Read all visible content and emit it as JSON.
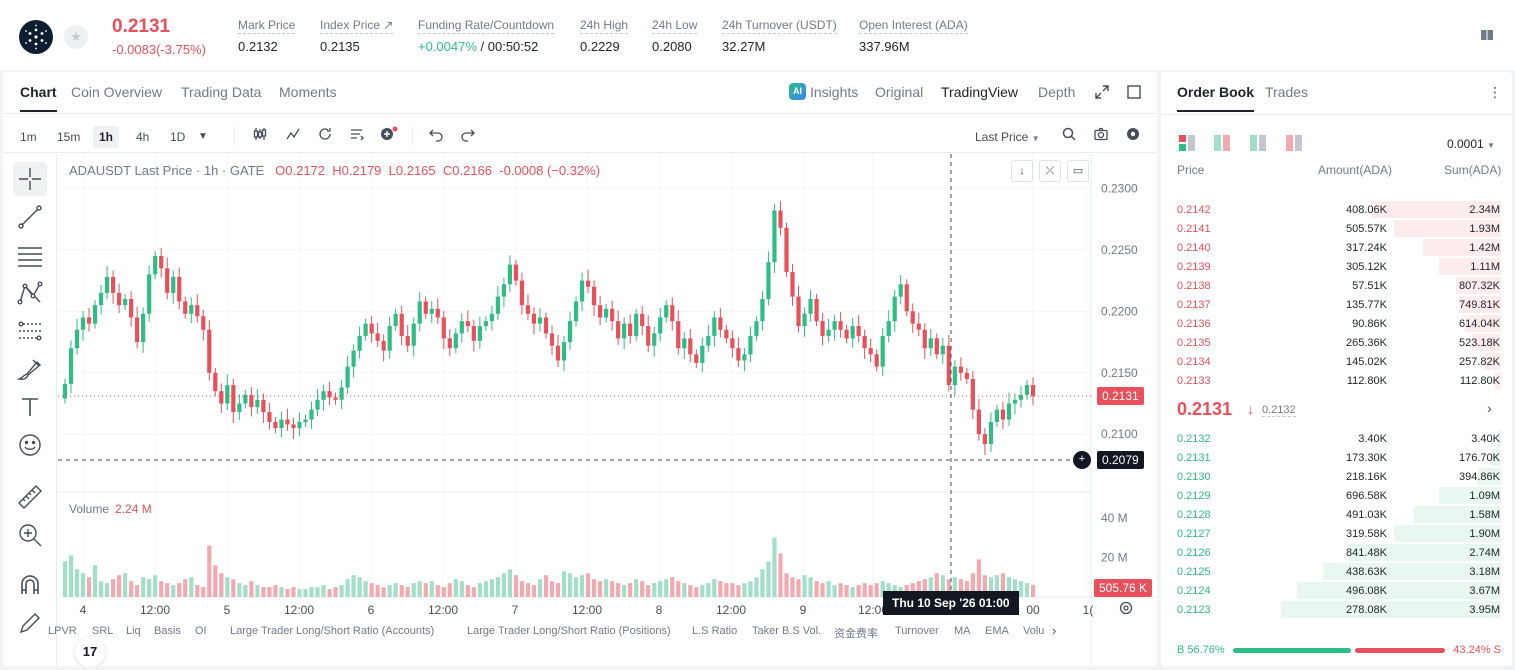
{
  "header": {
    "last_price": "0.2131",
    "change": "-0.0083(-3.75%)",
    "stats": [
      {
        "label": "Mark Price",
        "value": "0.2132"
      },
      {
        "label": "Index Price ↗",
        "value": "0.2135"
      },
      {
        "label": "Funding Rate/Countdown",
        "value_green": "+0.0047%",
        "value": " / 00:50:52"
      },
      {
        "label": "24h High",
        "value": "0.2229"
      },
      {
        "label": "24h Low",
        "value": "0.2080"
      },
      {
        "label": "24h Turnover (USDT)",
        "value": "32.27M"
      },
      {
        "label": "Open Interest (ADA)",
        "value": "337.96M"
      }
    ]
  },
  "chart_tabs": [
    "Chart",
    "Coin Overview",
    "Trading Data",
    "Moments"
  ],
  "view_options": {
    "insights": "Insights",
    "ai_badge": "AI",
    "original": "Original",
    "tradingview": "TradingView",
    "depth": "Depth"
  },
  "intervals": [
    "1m",
    "15m",
    "1h",
    "4h",
    "1D"
  ],
  "price_source": "Last Price",
  "legend": {
    "symbol": "ADAUSDT Last Price · 1h · GATE",
    "o": "O0.2172",
    "h": "H0.2179",
    "l": "L0.2165",
    "c": "C0.2166",
    "chg": "-0.0008 (−0.32%)"
  },
  "volume_legend": {
    "label": "Volume",
    "value": "2.24 M"
  },
  "tv_logo": "17",
  "price_axis": {
    "ticks": [
      "0.2300",
      "0.2250",
      "0.2200",
      "0.2150",
      "0.2100"
    ],
    "tick_values": [
      0.23,
      0.225,
      0.22,
      0.215,
      0.21
    ],
    "current": "0.2131",
    "current_value": 0.2131,
    "crosshair": "0.2079",
    "crosshair_value": 0.2079,
    "range": [
      0.2053,
      0.2328
    ]
  },
  "volume_axis": {
    "ticks": [
      "40 M",
      "20 M"
    ],
    "tick_values": [
      40,
      20
    ],
    "current": "505.76 K",
    "max": 53
  },
  "time_axis": {
    "labels": [
      "4",
      "12:00",
      "5",
      "12:00",
      "6",
      "12:00",
      "7",
      "12:00",
      "8",
      "12:00",
      "9",
      "12:00",
      "00",
      "1("
    ],
    "crosshair_label": "Thu 10 Sep '26   01:00"
  },
  "indicators": [
    "LPVR",
    "SRL",
    "Liq",
    "Basis",
    "OI",
    "Large Trader Long/Short Ratio (Accounts)",
    "Large Trader Long/Short Ratio (Positions)",
    "L.S Ratio",
    "Taker B.S Vol.",
    "资金费率",
    "Turnover",
    "MA",
    "EMA",
    "Volu"
  ],
  "colors": {
    "up": "#2ebd85",
    "down": "#e8505b",
    "up_vol": "#a3dec8",
    "down_vol": "#f3a9b0"
  },
  "order_book": {
    "tabs": [
      "Order Book",
      "Trades"
    ],
    "precision": "0.0001",
    "headers": {
      "price": "Price",
      "amount": "Amount(ADA)",
      "sum": "Sum(ADA)"
    },
    "asks": [
      {
        "price": "0.2142",
        "amount": "408.06K",
        "sum": "2.34M",
        "depth": 0.4
      },
      {
        "price": "0.2141",
        "amount": "505.57K",
        "sum": "1.93M",
        "depth": 0.33
      },
      {
        "price": "0.2140",
        "amount": "317.24K",
        "sum": "1.42M",
        "depth": 0.24
      },
      {
        "price": "0.2139",
        "amount": "305.12K",
        "sum": "1.11M",
        "depth": 0.19
      },
      {
        "price": "0.2138",
        "amount": "57.51K",
        "sum": "807.32K",
        "depth": 0.14
      },
      {
        "price": "0.2137",
        "amount": "135.77K",
        "sum": "749.81K",
        "depth": 0.13
      },
      {
        "price": "0.2136",
        "amount": "90.86K",
        "sum": "614.04K",
        "depth": 0.11
      },
      {
        "price": "0.2135",
        "amount": "265.36K",
        "sum": "523.18K",
        "depth": 0.09
      },
      {
        "price": "0.2134",
        "amount": "145.02K",
        "sum": "257.82K",
        "depth": 0.05
      },
      {
        "price": "0.2133",
        "amount": "112.80K",
        "sum": "112.80K",
        "depth": 0.02
      }
    ],
    "mid": {
      "price": "0.2131",
      "arrow": "↓",
      "mark": "0.2132",
      "chevron": "›"
    },
    "bids": [
      {
        "price": "0.2132",
        "amount": "3.40K",
        "sum": "3.40K",
        "depth": 0.01
      },
      {
        "price": "0.2131",
        "amount": "173.30K",
        "sum": "176.70K",
        "depth": 0.03
      },
      {
        "price": "0.2130",
        "amount": "218.16K",
        "sum": "394.86K",
        "depth": 0.07
      },
      {
        "price": "0.2129",
        "amount": "696.58K",
        "sum": "1.09M",
        "depth": 0.19
      },
      {
        "price": "0.2128",
        "amount": "491.03K",
        "sum": "1.58M",
        "depth": 0.27
      },
      {
        "price": "0.2127",
        "amount": "319.58K",
        "sum": "1.90M",
        "depth": 0.33
      },
      {
        "price": "0.2126",
        "amount": "841.48K",
        "sum": "2.74M",
        "depth": 0.47
      },
      {
        "price": "0.2125",
        "amount": "438.63K",
        "sum": "3.18M",
        "depth": 0.55
      },
      {
        "price": "0.2124",
        "amount": "496.08K",
        "sum": "3.67M",
        "depth": 0.63
      },
      {
        "price": "0.2123",
        "amount": "278.08K",
        "sum": "3.95M",
        "depth": 0.68
      }
    ],
    "ratio": {
      "buy": "B 56.76%",
      "sell": "43.24% S",
      "buy_fraction": 0.5676
    }
  },
  "chart_data": {
    "type": "candlestick",
    "close_series": [
      0.2141,
      0.217,
      0.2185,
      0.2195,
      0.219,
      0.2205,
      0.2215,
      0.2228,
      0.2215,
      0.2205,
      0.221,
      0.2195,
      0.2175,
      0.2198,
      0.223,
      0.2245,
      0.2235,
      0.2215,
      0.2228,
      0.2208,
      0.2198,
      0.2205,
      0.2196,
      0.2185,
      0.215,
      0.2135,
      0.2125,
      0.214,
      0.2118,
      0.2125,
      0.2132,
      0.2122,
      0.2128,
      0.2118,
      0.211,
      0.2105,
      0.2112,
      0.2108,
      0.2105,
      0.211,
      0.2112,
      0.212,
      0.2128,
      0.2135,
      0.213,
      0.2128,
      0.2138,
      0.2155,
      0.2168,
      0.218,
      0.219,
      0.2182,
      0.2176,
      0.2168,
      0.2188,
      0.2198,
      0.218,
      0.2172,
      0.219,
      0.2208,
      0.2198,
      0.2202,
      0.2195,
      0.2178,
      0.217,
      0.2182,
      0.2192,
      0.2188,
      0.2176,
      0.2188,
      0.2192,
      0.2198,
      0.2212,
      0.2222,
      0.2238,
      0.2225,
      0.2205,
      0.2198,
      0.219,
      0.2195,
      0.2182,
      0.2172,
      0.216,
      0.2175,
      0.2192,
      0.2208,
      0.2225,
      0.222,
      0.2205,
      0.2195,
      0.2202,
      0.2192,
      0.2178,
      0.219,
      0.218,
      0.2198,
      0.2188,
      0.2172,
      0.2182,
      0.2195,
      0.2205,
      0.2192,
      0.217,
      0.2178,
      0.2165,
      0.2158,
      0.2172,
      0.218,
      0.2195,
      0.2185,
      0.2178,
      0.217,
      0.216,
      0.2165,
      0.218,
      0.2192,
      0.221,
      0.224,
      0.2282,
      0.2268,
      0.2232,
      0.2212,
      0.2188,
      0.2198,
      0.221,
      0.2192,
      0.218,
      0.2185,
      0.2192,
      0.2185,
      0.2178,
      0.2188,
      0.218,
      0.217,
      0.2165,
      0.2155,
      0.218,
      0.2192,
      0.2212,
      0.2222,
      0.22,
      0.219,
      0.2185,
      0.217,
      0.2178,
      0.2165,
      0.2172,
      0.214,
      0.2155,
      0.215,
      0.2145,
      0.212,
      0.21,
      0.2092,
      0.211,
      0.212,
      0.2112,
      0.2125,
      0.2128,
      0.2132,
      0.214,
      0.2131
    ],
    "volume_series": [
      18,
      21,
      14,
      12,
      10,
      16,
      8,
      7,
      9,
      11,
      12,
      8,
      6,
      10,
      9,
      11,
      8,
      7,
      6,
      7,
      9,
      10,
      6,
      5,
      26,
      16,
      12,
      10,
      9,
      7,
      6,
      8,
      6,
      5,
      5,
      6,
      5,
      4,
      5,
      4,
      4,
      5,
      5,
      6,
      4,
      5,
      6,
      9,
      11,
      10,
      8,
      7,
      6,
      5,
      6,
      7,
      6,
      5,
      7,
      8,
      7,
      8,
      6,
      5,
      7,
      9,
      8,
      6,
      5,
      7,
      8,
      9,
      10,
      12,
      14,
      11,
      8,
      7,
      6,
      9,
      11,
      8,
      7,
      13,
      12,
      10,
      11,
      12,
      9,
      8,
      9,
      8,
      7,
      6,
      7,
      9,
      8,
      6,
      7,
      8,
      9,
      10,
      8,
      7,
      6,
      5,
      6,
      7,
      9,
      8,
      7,
      7,
      6,
      7,
      8,
      10,
      14,
      18,
      30,
      22,
      12,
      10,
      9,
      11,
      10,
      8,
      7,
      8,
      6,
      7,
      6,
      5,
      6,
      7,
      6,
      7,
      8,
      7,
      6,
      5,
      6,
      7,
      8,
      9,
      10,
      12,
      11,
      9,
      10,
      9,
      8,
      12,
      19,
      11,
      10,
      11,
      12,
      10,
      9,
      8,
      7,
      6,
      0.5
    ]
  }
}
